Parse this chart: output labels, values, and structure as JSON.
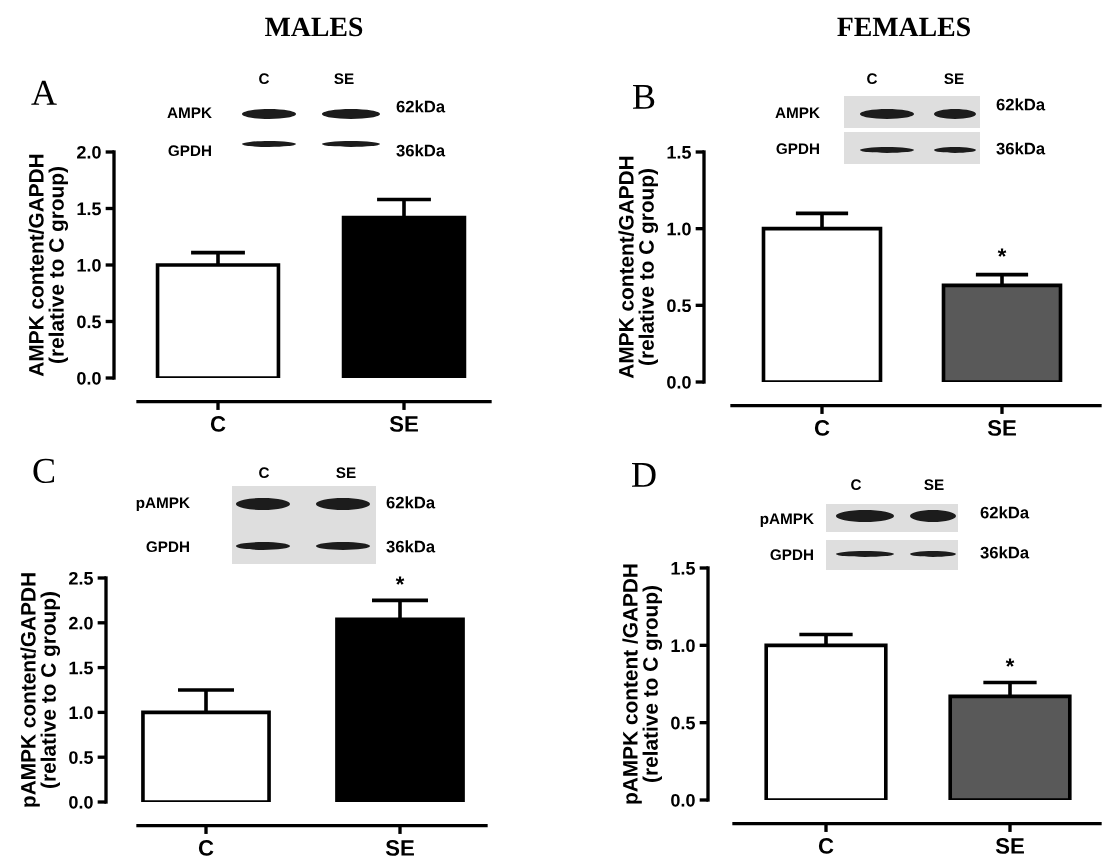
{
  "chart_data": [
    {
      "type": "bar",
      "title": "MALES",
      "ylabel": "AMPK content/GAPDH\n(relative to C group)",
      "categories": [
        "C",
        "SE"
      ],
      "values": [
        1.0,
        1.42
      ],
      "colors": [
        "#ffffff",
        "#000000"
      ],
      "errors": [
        [
          1.0,
          1.11
        ],
        [
          1.42,
          1.58
        ]
      ],
      "ylim": [
        0,
        2
      ],
      "yticks": [
        {
          "value": 0,
          "label": "0.0"
        },
        0.5,
        {
          "value": 1,
          "label": "1.0"
        },
        1.5,
        {
          "value": 2,
          "label": "2.0"
        }
      ],
      "annotations": [
        "A",
        "C",
        "SE",
        "AMPK",
        "GPDH",
        "62kDa",
        "36kDa"
      ]
    },
    {
      "type": "bar",
      "title": "FEMALES",
      "ylabel": "AMPK content/GAPDH\n(relative to C group)",
      "categories": [
        "C",
        "SE"
      ],
      "values": [
        1.0,
        0.63
      ],
      "colors": [
        "#ffffff",
        "#595959"
      ],
      "errors": [
        [
          1.0,
          1.1
        ],
        [
          0.63,
          0.7
        ]
      ],
      "ylim": [
        0,
        1.5
      ],
      "yticks": [
        {
          "value": 0,
          "label": "0.0"
        },
        0.5,
        {
          "value": 1,
          "label": "1.0"
        },
        1.5
      ],
      "annotations": [
        "B",
        "C",
        "SE",
        "AMPK",
        "GPDH",
        "62kDa",
        "36kDa",
        "*"
      ]
    },
    {
      "type": "bar",
      "ylabel": "pAMPK content/GAPDH\n(relative to C group)",
      "categories": [
        "C",
        "SE"
      ],
      "values": [
        1.0,
        2.04
      ],
      "colors": [
        "#ffffff",
        "#000000"
      ],
      "errors": [
        [
          1.0,
          1.25
        ],
        [
          2.04,
          2.25
        ]
      ],
      "ylim": [
        0,
        2.5
      ],
      "yticks": [
        {
          "value": 0,
          "label": "0.0"
        },
        0.5,
        {
          "value": 1,
          "label": "1.0"
        },
        1.5,
        {
          "value": 2,
          "label": "2.0"
        },
        2.5
      ],
      "annotations": [
        "C",
        "C",
        "SE",
        "pAMPK",
        "GPDH",
        "62kDa",
        "36kDa",
        "*"
      ]
    },
    {
      "type": "bar",
      "ylabel": "pAMPK content /GAPDH\n(relative to C group)",
      "categories": [
        "C",
        "SE"
      ],
      "values": [
        1.0,
        0.67
      ],
      "colors": [
        "#ffffff",
        "#595959"
      ],
      "errors": [
        [
          1.0,
          1.07
        ],
        [
          0.67,
          0.76
        ]
      ],
      "ylim": [
        0,
        1.5
      ],
      "yticks": [
        {
          "value": 0,
          "label": "0.0"
        },
        0.5,
        {
          "value": 1,
          "label": "1.0"
        },
        1.5
      ],
      "annotations": [
        "D",
        "C",
        "SE",
        "pAMPK",
        "GPDH",
        "62kDa",
        "36kDa",
        "*"
      ]
    }
  ]
}
